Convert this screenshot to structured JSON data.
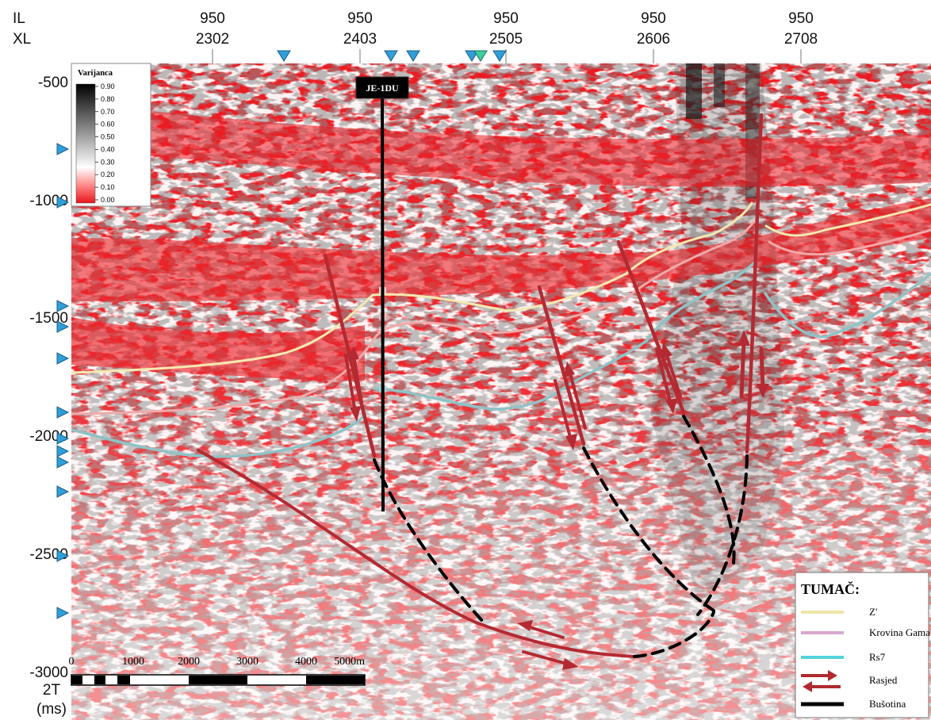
{
  "header": {
    "il_label": "IL",
    "xl_label": "XL",
    "columns": [
      {
        "il": "950",
        "xl": "2302"
      },
      {
        "il": "950",
        "xl": "2403"
      },
      {
        "il": "950",
        "xl": "2505"
      },
      {
        "il": "950",
        "xl": "2606"
      },
      {
        "il": "950",
        "xl": "2708"
      }
    ]
  },
  "time_axis": {
    "ticks": [
      "-500",
      "-1000",
      "-1500",
      "-2000",
      "-2500",
      "-3000"
    ],
    "unit_line1": "2T",
    "unit_line2": "(ms)"
  },
  "colorbar": {
    "title": "Varijanca",
    "ticks": [
      "0.90",
      "0.80",
      "0.70",
      "0.60",
      "0.50",
      "0.40",
      "0.30",
      "0.20",
      "0.10",
      "0.00"
    ],
    "colors": {
      "high": "#000000",
      "mid": "#ffffff",
      "low": "#e8161b"
    }
  },
  "scalebar": {
    "labels": [
      "0",
      "1000",
      "2000",
      "3000",
      "4000",
      "5000m"
    ]
  },
  "well": {
    "label": "JE-1DU"
  },
  "legend": {
    "title": "TUMAČ:",
    "items": [
      {
        "label": "Z'",
        "color": "#efe5a6"
      },
      {
        "label": "Krovina Gama",
        "color": "#d9a6d0"
      },
      {
        "label": "Rs7",
        "color": "#54d3dd"
      },
      {
        "label": "Rasjed",
        "color": "#b02a2f"
      },
      {
        "label": "Bušotina",
        "color": "#000000"
      }
    ]
  },
  "colors": {
    "section_red": "#ea1c22",
    "horizon_z": "#f3e9b0",
    "horizon_gama": "#f0a9a9",
    "horizon_rs7": "#8fc3c6",
    "fault": "#b32a32",
    "marker": "#2f9fd8",
    "marker_green": "#3ccfa0"
  }
}
